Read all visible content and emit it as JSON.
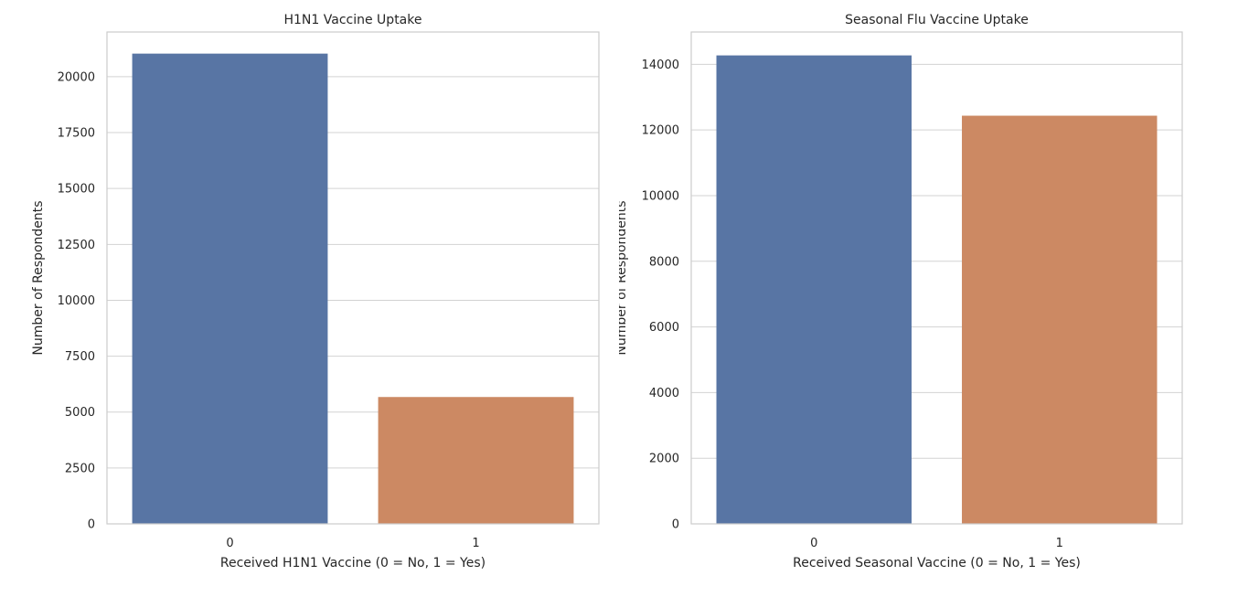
{
  "chart_data": [
    {
      "type": "bar",
      "title": "H1N1 Vaccine Uptake",
      "xlabel": "Received H1N1 Vaccine (0 = No, 1 = Yes)",
      "ylabel": "Number of Respondents",
      "categories": [
        "0",
        "1"
      ],
      "values": [
        21033,
        5674
      ],
      "colors": [
        "#5875a4",
        "#cc8963"
      ],
      "ylim": [
        0,
        22000
      ],
      "yticks": [
        0,
        2500,
        5000,
        7500,
        10000,
        12500,
        15000,
        17500,
        20000
      ],
      "grid": true
    },
    {
      "type": "bar",
      "title": "Seasonal Flu Vaccine Uptake",
      "xlabel": "Received Seasonal Vaccine (0 = No, 1 = Yes)",
      "ylabel": "Number of Respondents",
      "categories": [
        "0",
        "1"
      ],
      "values": [
        14272,
        12435
      ],
      "colors": [
        "#5875a4",
        "#cc8963"
      ],
      "ylim": [
        0,
        14985
      ],
      "yticks": [
        0,
        2000,
        4000,
        6000,
        8000,
        10000,
        12000,
        14000
      ],
      "grid": true
    }
  ]
}
